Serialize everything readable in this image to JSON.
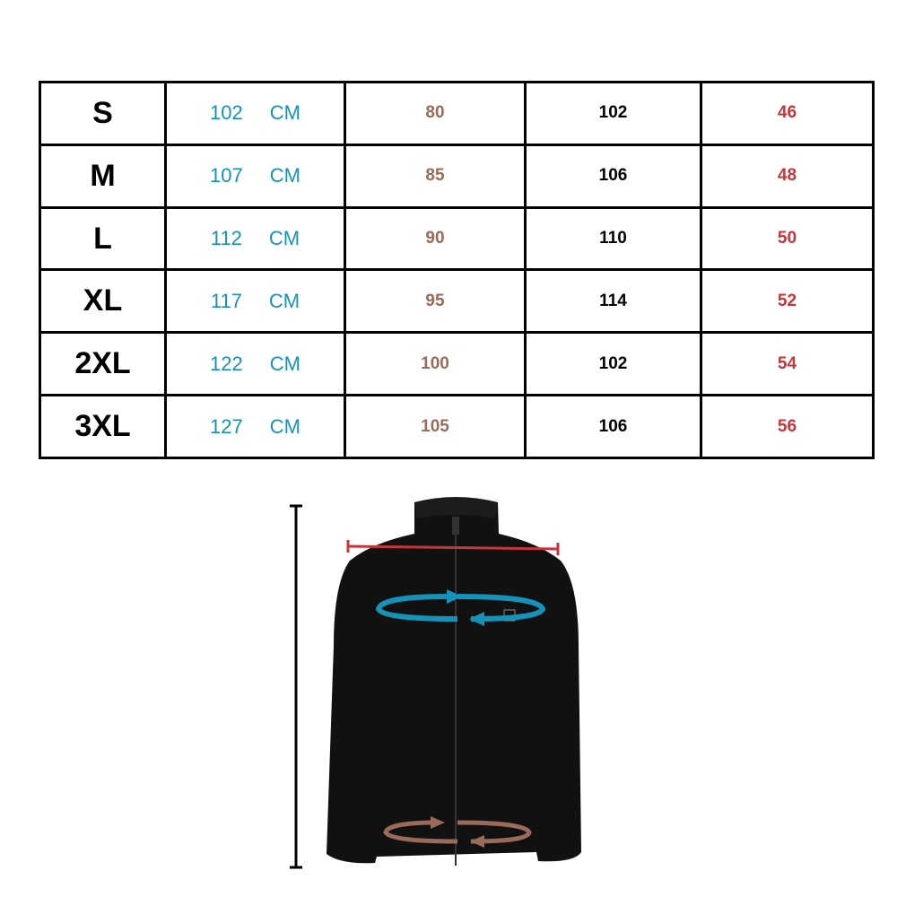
{
  "size_chart": {
    "rows": [
      {
        "size": "S",
        "chest": "102",
        "unit": "CM",
        "length": "80",
        "sleeve": "102",
        "shoulder": "46"
      },
      {
        "size": "M",
        "chest": "107",
        "unit": "CM",
        "length": "85",
        "sleeve": "106",
        "shoulder": "48"
      },
      {
        "size": "L",
        "chest": "112",
        "unit": "CM",
        "length": "90",
        "sleeve": "110",
        "shoulder": "50"
      },
      {
        "size": "XL",
        "chest": "117",
        "unit": "CM",
        "length": "95",
        "sleeve": "114",
        "shoulder": "52"
      },
      {
        "size": "2XL",
        "chest": "122",
        "unit": "CM",
        "length": "100",
        "sleeve": "102",
        "shoulder": "54"
      },
      {
        "size": "3XL",
        "chest": "127",
        "unit": "CM",
        "length": "105",
        "sleeve": "106",
        "shoulder": "56"
      }
    ]
  },
  "colors": {
    "chest": "#1592b8",
    "hem": "#9a6b58",
    "shoulder": "#c5363b",
    "length": "#000000",
    "jacket": "#111111"
  },
  "illustration": {
    "product": "black zip fleece jacket",
    "icons": [
      "length-measure-line",
      "shoulder-measure-line",
      "chest-circumference-arrows",
      "hem-circumference-arrows"
    ]
  }
}
